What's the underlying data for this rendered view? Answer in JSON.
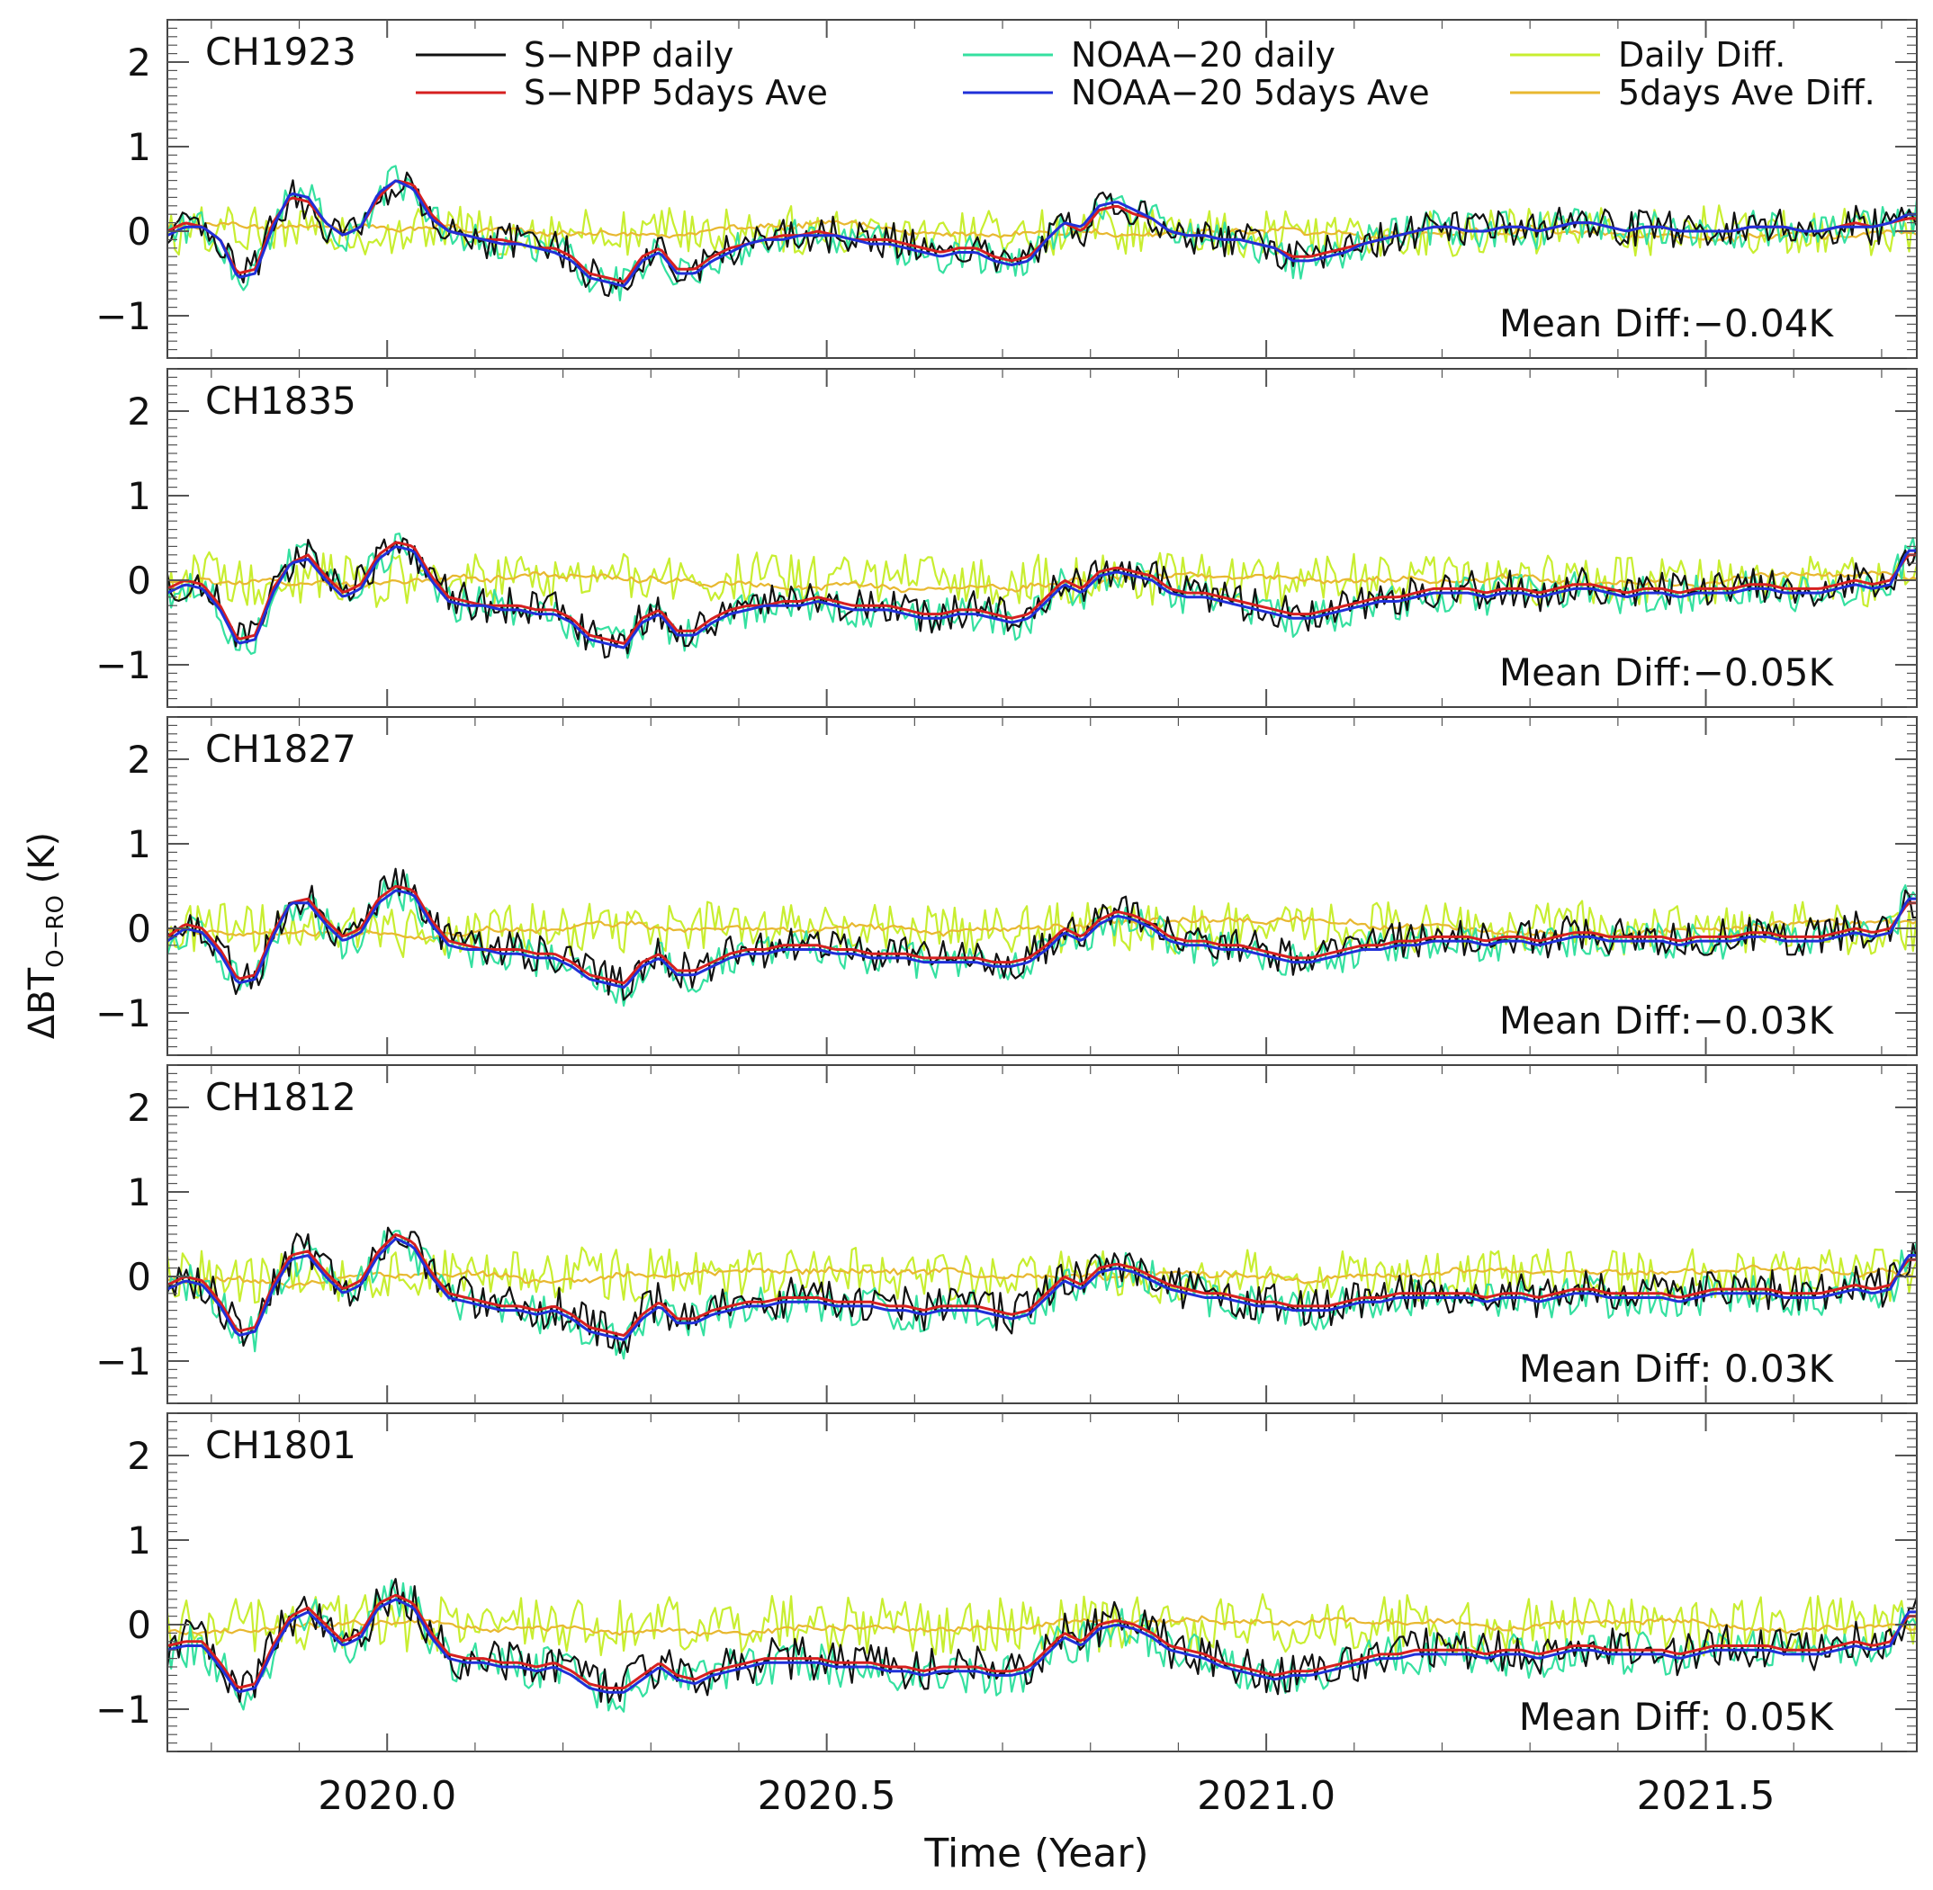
{
  "chart_data": {
    "type": "line",
    "ylabel_main": "ΔBT",
    "ylabel_sub": "O−RO",
    "ylabel_unit": " (K)",
    "xlabel": "Time (Year)",
    "xlim": [
      2019.75,
      2021.74
    ],
    "ylim": [
      -1.5,
      2.5
    ],
    "x_ticks": [
      2020.0,
      2020.5,
      2021.0,
      2021.5
    ],
    "x_tick_labels": [
      "2020.0",
      "2020.5",
      "2021.0",
      "2021.5"
    ],
    "y_ticks": [
      -1,
      0,
      1,
      2
    ],
    "y_tick_labels": [
      "−1",
      "0",
      "1",
      "2"
    ],
    "grid": false,
    "legend": [
      {
        "label": "S−NPP daily",
        "color": "#111111"
      },
      {
        "label": "S−NPP 5days Ave",
        "color": "#d62020"
      },
      {
        "label": "NOAA−20 daily",
        "color": "#35e0a0"
      },
      {
        "label": "NOAA−20 5days Ave",
        "color": "#2030d8"
      },
      {
        "label": "Daily Diff.",
        "color": "#c8ee30"
      },
      {
        "label": "5days Ave Diff.",
        "color": "#e8b830"
      }
    ],
    "series_step_years": 0.02,
    "panels": [
      {
        "channel": "CH1923",
        "mean_diff": "Mean Diff:−0.04K",
        "snpp_5day": [
          0.0,
          0.1,
          0.05,
          -0.1,
          -0.5,
          -0.45,
          0.1,
          0.4,
          0.35,
          0.1,
          -0.05,
          0.05,
          0.4,
          0.6,
          0.55,
          0.2,
          0.0,
          -0.05,
          -0.1,
          -0.1,
          -0.15,
          -0.2,
          -0.2,
          -0.3,
          -0.5,
          -0.55,
          -0.6,
          -0.3,
          -0.2,
          -0.45,
          -0.45,
          -0.3,
          -0.2,
          -0.15,
          -0.1,
          -0.05,
          -0.05,
          0.0,
          -0.05,
          -0.1,
          -0.1,
          -0.1,
          -0.15,
          -0.2,
          -0.25,
          -0.2,
          -0.2,
          -0.3,
          -0.35,
          -0.3,
          -0.1,
          0.1,
          0.0,
          0.25,
          0.3,
          0.2,
          0.15,
          0.0,
          -0.05,
          -0.05,
          -0.1,
          -0.1,
          -0.15,
          -0.2,
          -0.3,
          -0.3,
          -0.25,
          -0.2,
          -0.15,
          -0.1,
          -0.05,
          0.0,
          0.05,
          0.05,
          0.0,
          0.0,
          0.05,
          0.05,
          0.0,
          0.05,
          0.1,
          0.1,
          0.05,
          0.0,
          0.05,
          0.05,
          0.0,
          0.0,
          0.0,
          0.0,
          0.05,
          0.05,
          0.05,
          0.0,
          0.0,
          0.05,
          0.1,
          0.05,
          0.1,
          0.15
        ],
        "noaa20_5day": [
          -0.05,
          0.05,
          0.05,
          -0.1,
          -0.55,
          -0.5,
          0.05,
          0.45,
          0.4,
          0.1,
          -0.05,
          0.05,
          0.45,
          0.6,
          0.5,
          0.15,
          0.0,
          -0.05,
          -0.1,
          -0.15,
          -0.15,
          -0.2,
          -0.25,
          -0.35,
          -0.55,
          -0.6,
          -0.65,
          -0.35,
          -0.25,
          -0.5,
          -0.5,
          -0.35,
          -0.25,
          -0.15,
          -0.1,
          -0.1,
          -0.05,
          -0.05,
          -0.05,
          -0.1,
          -0.15,
          -0.15,
          -0.2,
          -0.25,
          -0.3,
          -0.25,
          -0.25,
          -0.35,
          -0.4,
          -0.35,
          -0.1,
          0.1,
          0.05,
          0.3,
          0.35,
          0.25,
          0.15,
          0.0,
          -0.05,
          -0.05,
          -0.1,
          -0.1,
          -0.15,
          -0.2,
          -0.35,
          -0.35,
          -0.3,
          -0.25,
          -0.15,
          -0.1,
          -0.05,
          0.0,
          0.05,
          0.05,
          0.0,
          0.0,
          0.05,
          0.05,
          0.0,
          0.05,
          0.1,
          0.1,
          0.05,
          0.0,
          0.05,
          0.05,
          0.0,
          0.0,
          0.0,
          0.0,
          0.05,
          0.05,
          0.05,
          0.0,
          0.0,
          0.05,
          0.05,
          0.05,
          0.1,
          0.2
        ],
        "daily_spread": 0.22,
        "diff_spread": 0.28
      },
      {
        "channel": "CH1835",
        "mean_diff": "Mean Diff:−0.05K",
        "snpp_5day": [
          -0.1,
          0.0,
          -0.05,
          -0.3,
          -0.7,
          -0.65,
          -0.1,
          0.2,
          0.3,
          0.05,
          -0.15,
          -0.05,
          0.3,
          0.45,
          0.4,
          0.05,
          -0.2,
          -0.25,
          -0.3,
          -0.3,
          -0.3,
          -0.35,
          -0.35,
          -0.45,
          -0.65,
          -0.7,
          -0.75,
          -0.45,
          -0.35,
          -0.6,
          -0.6,
          -0.45,
          -0.35,
          -0.3,
          -0.3,
          -0.25,
          -0.25,
          -0.2,
          -0.25,
          -0.3,
          -0.3,
          -0.3,
          -0.35,
          -0.4,
          -0.4,
          -0.35,
          -0.35,
          -0.4,
          -0.45,
          -0.4,
          -0.2,
          0.0,
          -0.1,
          0.1,
          0.15,
          0.1,
          0.05,
          -0.1,
          -0.15,
          -0.15,
          -0.2,
          -0.25,
          -0.3,
          -0.35,
          -0.4,
          -0.4,
          -0.35,
          -0.3,
          -0.25,
          -0.2,
          -0.2,
          -0.15,
          -0.1,
          -0.1,
          -0.1,
          -0.15,
          -0.1,
          -0.1,
          -0.15,
          -0.1,
          -0.05,
          -0.05,
          -0.1,
          -0.15,
          -0.1,
          -0.1,
          -0.15,
          -0.1,
          -0.1,
          -0.1,
          -0.05,
          -0.05,
          -0.1,
          -0.1,
          -0.1,
          -0.05,
          0.0,
          -0.05,
          0.0,
          0.3
        ],
        "noaa20_5day": [
          -0.15,
          -0.05,
          -0.1,
          -0.35,
          -0.75,
          -0.7,
          -0.15,
          0.2,
          0.25,
          0.0,
          -0.2,
          -0.1,
          0.25,
          0.4,
          0.35,
          0.0,
          -0.25,
          -0.3,
          -0.3,
          -0.35,
          -0.35,
          -0.4,
          -0.4,
          -0.5,
          -0.7,
          -0.75,
          -0.8,
          -0.5,
          -0.4,
          -0.65,
          -0.65,
          -0.5,
          -0.4,
          -0.35,
          -0.3,
          -0.3,
          -0.3,
          -0.25,
          -0.3,
          -0.35,
          -0.35,
          -0.35,
          -0.4,
          -0.45,
          -0.45,
          -0.4,
          -0.4,
          -0.45,
          -0.5,
          -0.45,
          -0.25,
          -0.05,
          -0.15,
          0.05,
          0.1,
          0.05,
          0.0,
          -0.15,
          -0.2,
          -0.2,
          -0.25,
          -0.3,
          -0.35,
          -0.4,
          -0.45,
          -0.45,
          -0.4,
          -0.35,
          -0.3,
          -0.25,
          -0.25,
          -0.2,
          -0.15,
          -0.15,
          -0.15,
          -0.2,
          -0.15,
          -0.15,
          -0.2,
          -0.15,
          -0.1,
          -0.1,
          -0.15,
          -0.2,
          -0.15,
          -0.15,
          -0.2,
          -0.15,
          -0.15,
          -0.15,
          -0.1,
          -0.1,
          -0.15,
          -0.15,
          -0.15,
          -0.1,
          -0.05,
          -0.1,
          -0.05,
          0.35
        ],
        "daily_spread": 0.22,
        "diff_spread": 0.3
      },
      {
        "channel": "CH1827",
        "mean_diff": "Mean Diff:−0.03K",
        "snpp_5day": [
          -0.1,
          0.05,
          0.0,
          -0.25,
          -0.6,
          -0.55,
          -0.05,
          0.3,
          0.35,
          0.1,
          -0.1,
          0.0,
          0.35,
          0.5,
          0.45,
          0.1,
          -0.15,
          -0.2,
          -0.25,
          -0.25,
          -0.25,
          -0.3,
          -0.3,
          -0.4,
          -0.55,
          -0.6,
          -0.65,
          -0.4,
          -0.3,
          -0.5,
          -0.5,
          -0.4,
          -0.3,
          -0.25,
          -0.25,
          -0.2,
          -0.2,
          -0.2,
          -0.25,
          -0.25,
          -0.3,
          -0.3,
          -0.3,
          -0.35,
          -0.35,
          -0.35,
          -0.35,
          -0.4,
          -0.4,
          -0.35,
          -0.2,
          0.0,
          -0.1,
          0.1,
          0.2,
          0.15,
          0.05,
          -0.1,
          -0.15,
          -0.15,
          -0.2,
          -0.2,
          -0.25,
          -0.3,
          -0.35,
          -0.35,
          -0.3,
          -0.25,
          -0.2,
          -0.2,
          -0.15,
          -0.15,
          -0.1,
          -0.1,
          -0.1,
          -0.15,
          -0.1,
          -0.1,
          -0.15,
          -0.1,
          -0.05,
          -0.05,
          -0.1,
          -0.1,
          -0.1,
          -0.1,
          -0.15,
          -0.1,
          -0.1,
          -0.1,
          -0.05,
          -0.05,
          -0.1,
          -0.1,
          -0.1,
          -0.05,
          0.0,
          -0.05,
          0.0,
          0.3
        ],
        "noaa20_5day": [
          -0.15,
          0.0,
          -0.05,
          -0.3,
          -0.65,
          -0.6,
          -0.1,
          0.3,
          0.3,
          0.05,
          -0.15,
          -0.05,
          0.3,
          0.45,
          0.4,
          0.05,
          -0.2,
          -0.25,
          -0.25,
          -0.3,
          -0.3,
          -0.35,
          -0.35,
          -0.45,
          -0.6,
          -0.65,
          -0.7,
          -0.45,
          -0.35,
          -0.55,
          -0.55,
          -0.45,
          -0.35,
          -0.3,
          -0.3,
          -0.25,
          -0.25,
          -0.25,
          -0.3,
          -0.3,
          -0.35,
          -0.35,
          -0.35,
          -0.4,
          -0.4,
          -0.4,
          -0.4,
          -0.45,
          -0.45,
          -0.4,
          -0.25,
          -0.05,
          -0.15,
          0.05,
          0.15,
          0.1,
          0.0,
          -0.15,
          -0.2,
          -0.2,
          -0.25,
          -0.25,
          -0.3,
          -0.35,
          -0.4,
          -0.4,
          -0.35,
          -0.3,
          -0.25,
          -0.25,
          -0.2,
          -0.2,
          -0.15,
          -0.15,
          -0.15,
          -0.2,
          -0.15,
          -0.15,
          -0.2,
          -0.15,
          -0.1,
          -0.1,
          -0.15,
          -0.15,
          -0.15,
          -0.15,
          -0.2,
          -0.15,
          -0.15,
          -0.15,
          -0.1,
          -0.1,
          -0.15,
          -0.15,
          -0.15,
          -0.1,
          -0.05,
          -0.1,
          -0.05,
          0.35
        ],
        "daily_spread": 0.22,
        "diff_spread": 0.3
      },
      {
        "channel": "CH1812",
        "mean_diff": "Mean Diff: 0.03K",
        "snpp_5day": [
          -0.1,
          0.0,
          -0.05,
          -0.3,
          -0.65,
          -0.6,
          -0.1,
          0.25,
          0.3,
          0.05,
          -0.15,
          -0.05,
          0.3,
          0.5,
          0.4,
          0.05,
          -0.2,
          -0.25,
          -0.3,
          -0.35,
          -0.35,
          -0.4,
          -0.35,
          -0.45,
          -0.6,
          -0.65,
          -0.7,
          -0.45,
          -0.3,
          -0.5,
          -0.5,
          -0.4,
          -0.35,
          -0.3,
          -0.3,
          -0.25,
          -0.25,
          -0.25,
          -0.3,
          -0.3,
          -0.3,
          -0.35,
          -0.35,
          -0.4,
          -0.35,
          -0.35,
          -0.35,
          -0.4,
          -0.45,
          -0.4,
          -0.2,
          0.0,
          -0.1,
          0.1,
          0.15,
          0.1,
          0.0,
          -0.1,
          -0.15,
          -0.2,
          -0.2,
          -0.25,
          -0.3,
          -0.3,
          -0.35,
          -0.35,
          -0.35,
          -0.3,
          -0.25,
          -0.25,
          -0.2,
          -0.2,
          -0.2,
          -0.2,
          -0.2,
          -0.25,
          -0.2,
          -0.2,
          -0.25,
          -0.2,
          -0.15,
          -0.15,
          -0.2,
          -0.2,
          -0.2,
          -0.2,
          -0.25,
          -0.2,
          -0.15,
          -0.15,
          -0.15,
          -0.15,
          -0.2,
          -0.2,
          -0.2,
          -0.15,
          -0.1,
          -0.15,
          -0.1,
          0.2
        ],
        "noaa20_5day": [
          -0.15,
          -0.05,
          -0.1,
          -0.35,
          -0.7,
          -0.65,
          -0.15,
          0.2,
          0.25,
          0.0,
          -0.2,
          -0.1,
          0.25,
          0.45,
          0.35,
          0.0,
          -0.25,
          -0.3,
          -0.35,
          -0.4,
          -0.4,
          -0.45,
          -0.4,
          -0.5,
          -0.65,
          -0.7,
          -0.75,
          -0.5,
          -0.35,
          -0.55,
          -0.55,
          -0.45,
          -0.4,
          -0.35,
          -0.35,
          -0.3,
          -0.3,
          -0.3,
          -0.35,
          -0.35,
          -0.35,
          -0.4,
          -0.4,
          -0.45,
          -0.4,
          -0.4,
          -0.4,
          -0.45,
          -0.5,
          -0.45,
          -0.25,
          -0.05,
          -0.15,
          0.05,
          0.1,
          0.05,
          -0.05,
          -0.15,
          -0.2,
          -0.25,
          -0.25,
          -0.3,
          -0.35,
          -0.35,
          -0.4,
          -0.4,
          -0.4,
          -0.35,
          -0.3,
          -0.3,
          -0.25,
          -0.25,
          -0.25,
          -0.25,
          -0.25,
          -0.3,
          -0.25,
          -0.25,
          -0.3,
          -0.25,
          -0.2,
          -0.2,
          -0.25,
          -0.25,
          -0.25,
          -0.25,
          -0.3,
          -0.25,
          -0.2,
          -0.2,
          -0.2,
          -0.2,
          -0.25,
          -0.25,
          -0.25,
          -0.2,
          -0.15,
          -0.2,
          -0.15,
          0.25
        ],
        "daily_spread": 0.24,
        "diff_spread": 0.32
      },
      {
        "channel": "CH1801",
        "mean_diff": "Mean Diff: 0.05K",
        "snpp_5day": [
          -0.25,
          -0.2,
          -0.2,
          -0.45,
          -0.75,
          -0.7,
          -0.25,
          0.1,
          0.2,
          0.0,
          -0.2,
          -0.1,
          0.25,
          0.35,
          0.25,
          -0.1,
          -0.35,
          -0.4,
          -0.4,
          -0.45,
          -0.45,
          -0.5,
          -0.45,
          -0.55,
          -0.7,
          -0.75,
          -0.75,
          -0.6,
          -0.45,
          -0.6,
          -0.65,
          -0.55,
          -0.5,
          -0.45,
          -0.4,
          -0.4,
          -0.4,
          -0.4,
          -0.45,
          -0.45,
          -0.45,
          -0.5,
          -0.5,
          -0.55,
          -0.5,
          -0.5,
          -0.5,
          -0.55,
          -0.55,
          -0.5,
          -0.3,
          -0.1,
          -0.2,
          0.0,
          0.05,
          0.0,
          -0.1,
          -0.25,
          -0.3,
          -0.35,
          -0.45,
          -0.5,
          -0.55,
          -0.6,
          -0.55,
          -0.55,
          -0.5,
          -0.45,
          -0.4,
          -0.35,
          -0.35,
          -0.3,
          -0.3,
          -0.3,
          -0.3,
          -0.35,
          -0.3,
          -0.3,
          -0.35,
          -0.3,
          -0.25,
          -0.25,
          -0.3,
          -0.3,
          -0.3,
          -0.3,
          -0.35,
          -0.3,
          -0.25,
          -0.25,
          -0.25,
          -0.25,
          -0.3,
          -0.3,
          -0.3,
          -0.25,
          -0.2,
          -0.25,
          -0.2,
          0.1
        ],
        "noaa20_5day": [
          -0.3,
          -0.25,
          -0.25,
          -0.5,
          -0.8,
          -0.75,
          -0.3,
          0.05,
          0.15,
          -0.05,
          -0.25,
          -0.15,
          0.2,
          0.3,
          0.2,
          -0.15,
          -0.4,
          -0.45,
          -0.45,
          -0.5,
          -0.5,
          -0.55,
          -0.5,
          -0.6,
          -0.75,
          -0.8,
          -0.8,
          -0.65,
          -0.5,
          -0.65,
          -0.7,
          -0.6,
          -0.55,
          -0.5,
          -0.45,
          -0.45,
          -0.45,
          -0.45,
          -0.5,
          -0.5,
          -0.5,
          -0.55,
          -0.55,
          -0.6,
          -0.55,
          -0.55,
          -0.55,
          -0.6,
          -0.6,
          -0.55,
          -0.35,
          -0.15,
          -0.25,
          -0.05,
          0.0,
          -0.05,
          -0.15,
          -0.3,
          -0.35,
          -0.4,
          -0.5,
          -0.55,
          -0.6,
          -0.65,
          -0.6,
          -0.6,
          -0.55,
          -0.5,
          -0.45,
          -0.4,
          -0.4,
          -0.35,
          -0.35,
          -0.35,
          -0.35,
          -0.4,
          -0.35,
          -0.35,
          -0.4,
          -0.35,
          -0.3,
          -0.3,
          -0.35,
          -0.35,
          -0.35,
          -0.35,
          -0.4,
          -0.35,
          -0.3,
          -0.3,
          -0.3,
          -0.3,
          -0.35,
          -0.35,
          -0.35,
          -0.3,
          -0.25,
          -0.3,
          -0.25,
          0.15
        ],
        "daily_spread": 0.26,
        "diff_spread": 0.34
      }
    ]
  }
}
